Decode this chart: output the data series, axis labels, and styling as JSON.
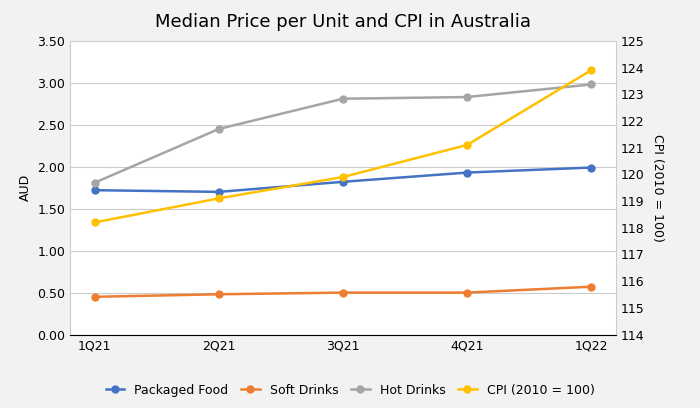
{
  "title": "Median Price per Unit and CPI in Australia",
  "x_labels": [
    "1Q21",
    "2Q21",
    "3Q21",
    "4Q21",
    "1Q22"
  ],
  "packaged_food": [
    1.72,
    1.7,
    1.82,
    1.93,
    1.99
  ],
  "soft_drinks": [
    0.45,
    0.48,
    0.5,
    0.5,
    0.57
  ],
  "hot_drinks": [
    1.81,
    2.45,
    2.81,
    2.83,
    2.98
  ],
  "cpi": [
    118.2,
    119.1,
    119.9,
    121.1,
    123.9
  ],
  "packaged_food_color": "#4472C4",
  "soft_drinks_color": "#ED7D31",
  "hot_drinks_color": "#A5A5A5",
  "cpi_color": "#FFC000",
  "ylabel_left": "AUD",
  "ylabel_right": "CPI (2010 = 100)",
  "ylim_left": [
    0.0,
    3.5
  ],
  "ylim_right": [
    114,
    125
  ],
  "yticks_left": [
    0.0,
    0.5,
    1.0,
    1.5,
    2.0,
    2.5,
    3.0,
    3.5
  ],
  "yticks_right": [
    114,
    115,
    116,
    117,
    118,
    119,
    120,
    121,
    122,
    123,
    124,
    125
  ],
  "background_color": "#F2F2F2",
  "plot_bg_color": "#FFFFFF",
  "grid_color": "#CCCCCC",
  "title_fontsize": 13,
  "axis_fontsize": 9,
  "tick_fontsize": 9,
  "legend_fontsize": 9,
  "line_width": 1.8,
  "marker": "o",
  "marker_size": 5
}
